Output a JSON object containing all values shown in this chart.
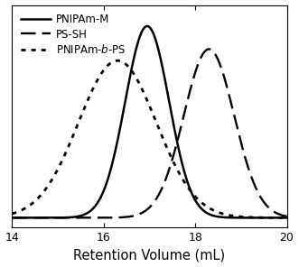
{
  "xlabel": "Retention Volume (mL)",
  "xlim": [
    14,
    20
  ],
  "ylim": [
    -0.04,
    1.12
  ],
  "xticks": [
    14,
    16,
    18,
    20
  ],
  "background_color": "#ffffff",
  "curves": [
    {
      "label": "PNIPAm-M",
      "linestyle": "solid",
      "linewidth": 1.8,
      "color": "#000000",
      "peak": 16.95,
      "sigma": 0.48,
      "amplitude": 1.0,
      "baseline": 0.01
    },
    {
      "label": "PS-SH",
      "linestyle": "dashed",
      "linewidth": 1.7,
      "color": "#000000",
      "peak": 18.3,
      "sigma": 0.55,
      "amplitude": 0.88,
      "baseline": 0.01
    },
    {
      "label": "PNIPAm-$b$-PS",
      "linestyle": "dotted",
      "linewidth": 2.0,
      "color": "#000000",
      "peak": 16.3,
      "sigma": 0.85,
      "amplitude": 0.82,
      "baseline": 0.01
    }
  ],
  "legend_labels": [
    "PNIPAm-M",
    "PS-SH",
    "PNIPAm-$b$-PS"
  ],
  "legend_linestyles": [
    "solid",
    "dashed",
    "dotted"
  ],
  "legend_loc": "upper left",
  "fontsize_legend": 8.5,
  "fontsize_xlabel": 10.5,
  "fontsize_xticks": 9
}
